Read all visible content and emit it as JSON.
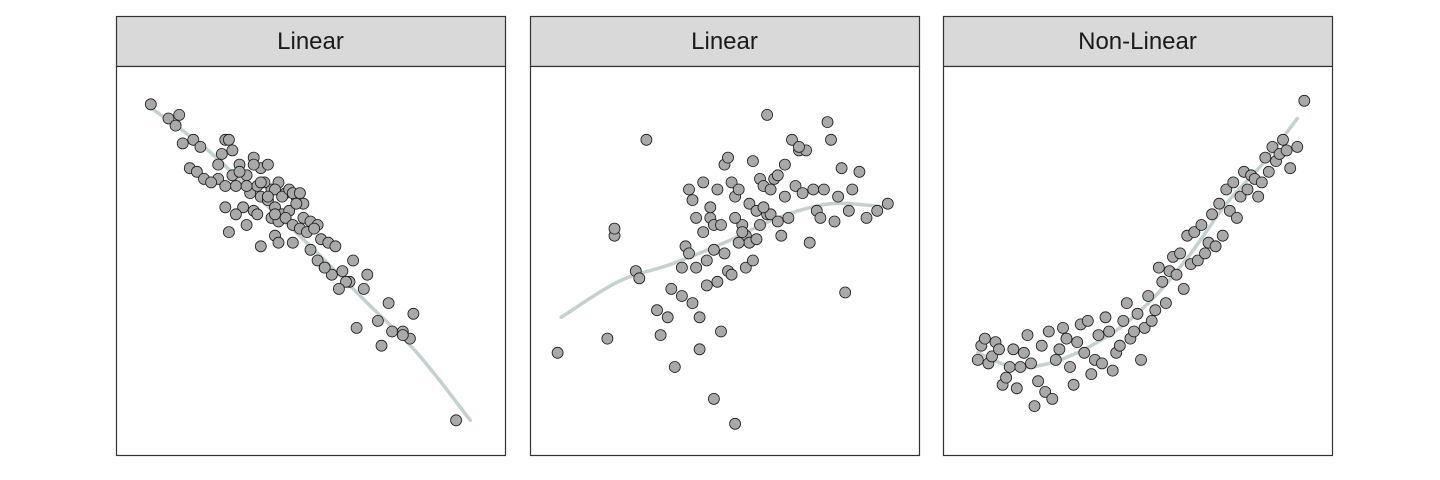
{
  "chart_data": [
    {
      "type": "scatter",
      "title": "Linear",
      "smoother": true,
      "xlim": [
        0,
        100
      ],
      "ylim": [
        0,
        100
      ],
      "axes_visible": false,
      "grid": false,
      "colors": {
        "point_fill": "#a9a9a9",
        "point_stroke": "#1a1a1a",
        "line": "#c5d1d1",
        "strip_fill": "#d9d9d9",
        "border": "#333333"
      },
      "x": [
        5,
        10,
        13,
        12,
        17,
        14,
        16,
        19,
        24,
        26,
        27,
        25,
        28,
        30,
        32,
        34,
        36,
        38,
        39,
        41,
        43,
        46,
        29,
        33,
        35,
        37,
        40,
        42,
        44,
        45,
        47,
        48,
        31,
        34,
        36,
        38,
        40,
        42,
        44,
        46,
        48,
        50,
        52,
        35,
        39,
        41,
        43,
        45,
        47,
        49,
        51,
        53,
        55,
        24,
        26,
        28,
        30,
        32,
        34,
        36,
        38,
        40,
        18,
        20,
        22,
        40,
        45,
        50,
        52,
        54,
        56,
        59,
        61,
        57,
        65,
        60,
        69,
        73,
        76,
        78,
        79,
        72,
        66,
        62,
        58,
        54,
        63,
        70,
        76,
        91,
        29,
        27,
        32,
        36,
        26,
        41
      ],
      "y": [
        94,
        90,
        91,
        88,
        84,
        83,
        76,
        82,
        77,
        84,
        84,
        80,
        81,
        77,
        74,
        79,
        76,
        77,
        70,
        72,
        69,
        68,
        71,
        69,
        71,
        72,
        70,
        68,
        70,
        69,
        69,
        66,
        65,
        64,
        68,
        67,
        65,
        63,
        64,
        66,
        62,
        61,
        60,
        63,
        62,
        61,
        62,
        60,
        59,
        58,
        59,
        56,
        55,
        73,
        71,
        74,
        75,
        71,
        77,
        72,
        68,
        63,
        75,
        73,
        72,
        57,
        55,
        53,
        50,
        48,
        46,
        47,
        44,
        54,
        42,
        44,
        33,
        30,
        30,
        28,
        35,
        38,
        46,
        50,
        42,
        48,
        31,
        26,
        29,
        5,
        63,
        58,
        60,
        54,
        65,
        55
      ],
      "smooth_x": [
        5,
        20,
        35,
        50,
        65,
        80,
        95
      ],
      "smooth_y": [
        93,
        82,
        68,
        54,
        39,
        24,
        5
      ]
    },
    {
      "type": "scatter",
      "title": "Linear",
      "smoother": true,
      "xlim": [
        0,
        100
      ],
      "ylim": [
        0,
        100
      ],
      "axes_visible": false,
      "grid": false,
      "colors": {
        "point_fill": "#a9a9a9",
        "point_stroke": "#1a1a1a",
        "line": "#c5d1d1",
        "strip_fill": "#d9d9d9",
        "border": "#333333"
      },
      "x": [
        28,
        62,
        3,
        17,
        19,
        19,
        25,
        26,
        31,
        32,
        34,
        36,
        38,
        39,
        40,
        41,
        42,
        43,
        44,
        45,
        46,
        47,
        48,
        49,
        50,
        51,
        52,
        53,
        54,
        55,
        56,
        57,
        58,
        59,
        60,
        61,
        62,
        63,
        64,
        65,
        66,
        67,
        68,
        69,
        70,
        71,
        72,
        73,
        74,
        75,
        76,
        77,
        78,
        79,
        80,
        81,
        82,
        83,
        84,
        85,
        86,
        88,
        90,
        93,
        96,
        40,
        42,
        45,
        47,
        49,
        51,
        53,
        55,
        57,
        59,
        61,
        63,
        65,
        35,
        38,
        48,
        52,
        56,
        58,
        44,
        46,
        54,
        60,
        50,
        41,
        67,
        71,
        47,
        43,
        53
      ],
      "y": [
        84,
        91,
        24,
        28,
        57,
        59,
        47,
        45,
        36,
        29,
        34,
        20,
        48,
        54,
        70,
        67,
        62,
        25,
        72,
        43,
        62,
        60,
        70,
        30,
        77,
        79,
        72,
        68,
        70,
        60,
        57,
        66,
        78,
        64,
        73,
        71,
        63,
        63,
        73,
        74,
        57,
        68,
        62,
        84,
        71,
        81,
        69,
        81,
        55,
        70,
        64,
        62,
        70,
        89,
        84,
        61,
        68,
        76,
        41,
        64,
        70,
        75,
        62,
        64,
        66,
        52,
        48,
        50,
        53,
        60,
        47,
        62,
        58,
        55,
        56,
        65,
        70,
        61,
        42,
        40,
        44,
        46,
        48,
        50,
        58,
        65,
        55,
        60,
        52,
        38,
        77,
        82,
        11,
        34,
        4
      ],
      "smooth_x": [
        4,
        20,
        35,
        50,
        65,
        80,
        96
      ],
      "smooth_y": [
        34,
        44,
        49,
        55,
        62,
        66,
        65
      ]
    },
    {
      "type": "scatter",
      "title": "Non-Linear",
      "smoother": true,
      "xlim": [
        0,
        100
      ],
      "ylim": [
        0,
        100
      ],
      "axes_visible": false,
      "grid": false,
      "colors": {
        "point_fill": "#a9a9a9",
        "point_stroke": "#1a1a1a",
        "line": "#c5d1d1",
        "strip_fill": "#d9d9d9",
        "border": "#333333"
      },
      "x": [
        5,
        6,
        7,
        8,
        9,
        10,
        11,
        12,
        13,
        14,
        15,
        16,
        17,
        18,
        19,
        20,
        21,
        22,
        23,
        24,
        25,
        26,
        27,
        28,
        29,
        30,
        31,
        32,
        33,
        34,
        35,
        36,
        37,
        38,
        39,
        40,
        41,
        42,
        43,
        44,
        45,
        46,
        47,
        48,
        49,
        50,
        51,
        52,
        53,
        54,
        55,
        56,
        57,
        58,
        59,
        60,
        61,
        62,
        63,
        64,
        65,
        66,
        67,
        68,
        69,
        70,
        71,
        72,
        73,
        74,
        75,
        76,
        77,
        78,
        79,
        80,
        81,
        82,
        83,
        84,
        85,
        86,
        87,
        88,
        89,
        90,
        91,
        92,
        93,
        95,
        97
      ],
      "y": [
        22,
        26,
        28,
        21,
        23,
        27,
        25,
        15,
        17,
        20,
        25,
        14,
        20,
        24,
        29,
        21,
        9,
        16,
        26,
        13,
        30,
        11,
        22,
        25,
        31,
        28,
        20,
        15,
        27,
        32,
        24,
        33,
        18,
        22,
        29,
        21,
        34,
        30,
        19,
        24,
        26,
        33,
        38,
        28,
        30,
        35,
        22,
        31,
        40,
        33,
        36,
        48,
        44,
        38,
        47,
        51,
        46,
        52,
        42,
        57,
        49,
        58,
        50,
        60,
        52,
        55,
        63,
        54,
        66,
        57,
        70,
        64,
        72,
        62,
        68,
        75,
        70,
        74,
        73,
        68,
        72,
        79,
        75,
        82,
        78,
        80,
        84,
        81,
        76,
        82,
        95
      ],
      "smooth_x": [
        5,
        15,
        25,
        35,
        45,
        55,
        65,
        75,
        85,
        95
      ],
      "smooth_y": [
        24,
        20,
        21,
        25,
        31,
        40,
        52,
        66,
        77,
        90
      ]
    }
  ]
}
